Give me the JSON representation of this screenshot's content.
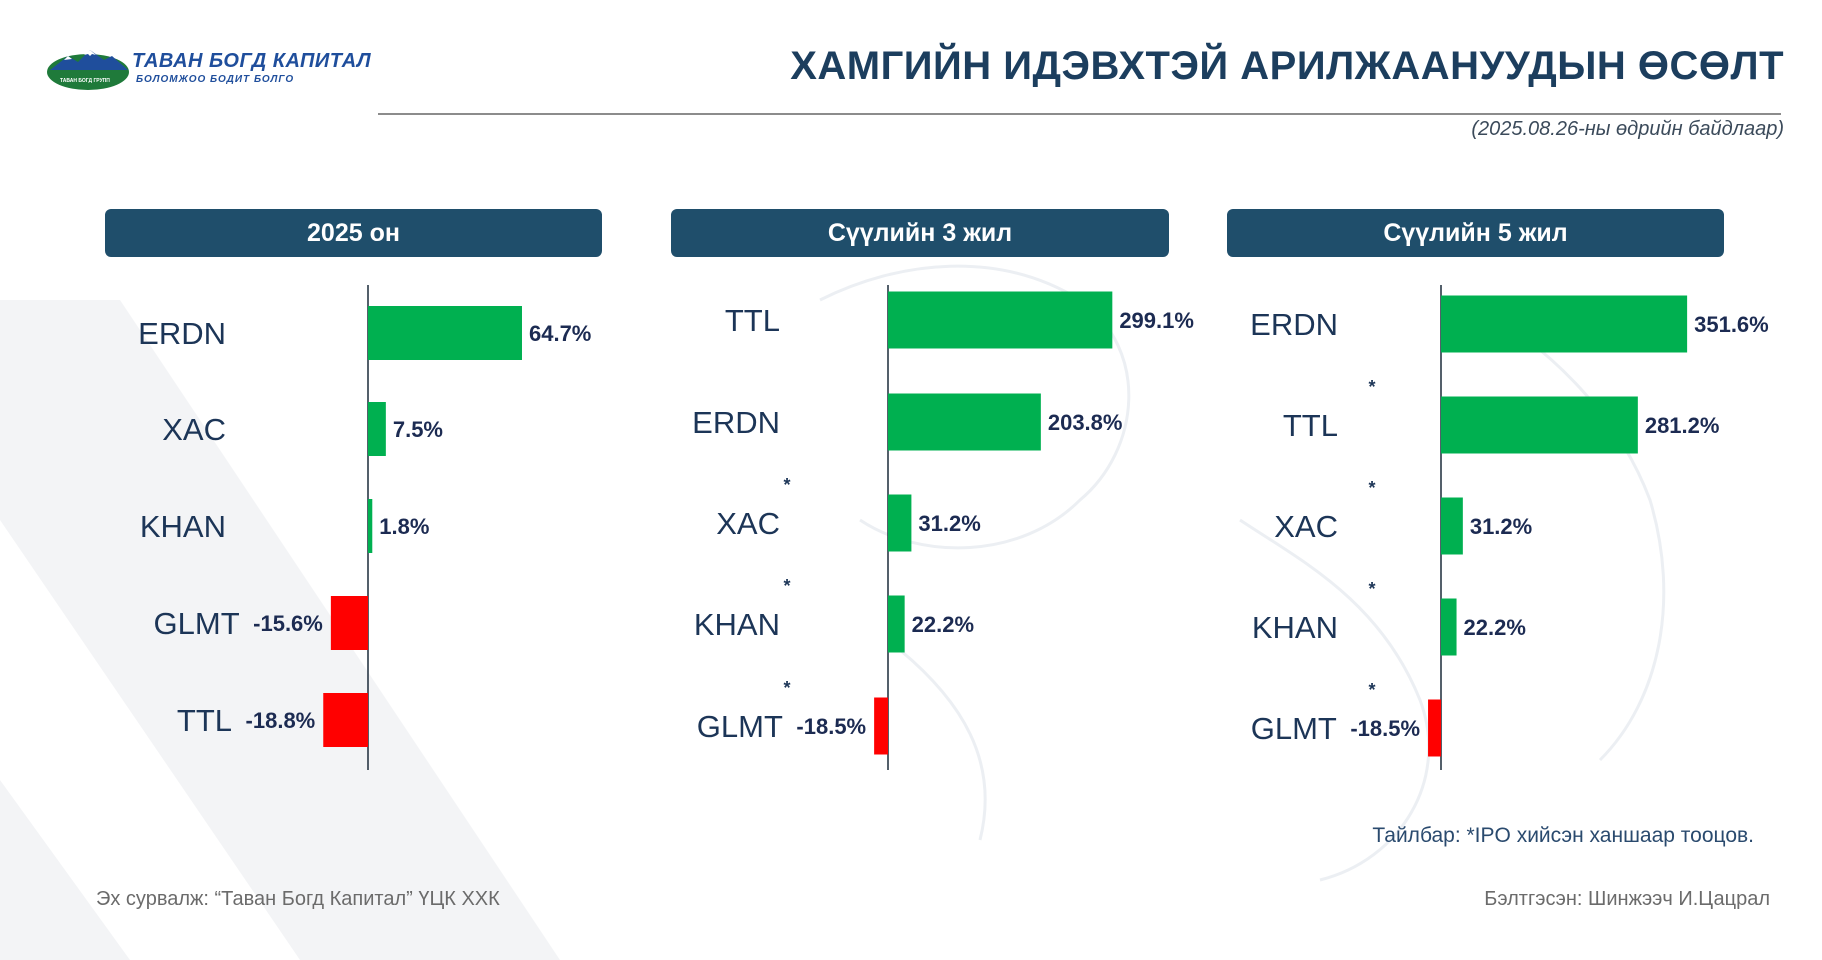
{
  "logo": {
    "name": "ТАВАН БОГД КАПИТАЛ",
    "tagline": "БОЛОМЖОО БОДИТ БОЛГО",
    "emblem_text": "ТАВАН БОГД ГРУПП"
  },
  "title": "ХАМГИЙН ИДЭВХТЭЙ АРИЛЖААНУУДЫН ӨСӨЛТ",
  "subtitle": "(2025.08.26-ны өдрийн байдлаар)",
  "colors": {
    "header_bg": "#1f4e6b",
    "positive": "#00b050",
    "negative": "#ff0000",
    "text_dark": "#1c3557"
  },
  "chart_data": [
    {
      "type": "bar",
      "orientation": "horizontal",
      "title": "2025 он",
      "categories": [
        "ERDN",
        "XAC",
        "KHAN",
        "GLMT",
        "TTL"
      ],
      "values": [
        64.7,
        7.5,
        1.8,
        -15.6,
        -18.8
      ],
      "labels": [
        "64.7%",
        "7.5%",
        "1.8%",
        "-15.6%",
        "-18.8%"
      ],
      "asterisks": [
        false,
        false,
        false,
        false,
        false
      ]
    },
    {
      "type": "bar",
      "orientation": "horizontal",
      "title": "Сүүлийн 3 жил",
      "categories": [
        "TTL",
        "ERDN",
        "XAC",
        "KHAN",
        "GLMT"
      ],
      "values": [
        299.1,
        203.8,
        31.2,
        22.2,
        -18.5
      ],
      "labels": [
        "299.1%",
        "203.8%",
        "31.2%",
        "22.2%",
        "-18.5%"
      ],
      "asterisks": [
        false,
        false,
        true,
        true,
        true
      ]
    },
    {
      "type": "bar",
      "orientation": "horizontal",
      "title": "Сүүлийн 5 жил",
      "categories": [
        "ERDN",
        "TTL",
        "XAC",
        "KHAN",
        "GLMT"
      ],
      "values": [
        351.6,
        281.2,
        31.2,
        22.2,
        -18.5
      ],
      "labels": [
        "351.6%",
        "281.2%",
        "31.2%",
        "22.2%",
        "-18.5%"
      ],
      "asterisks": [
        false,
        true,
        true,
        true,
        true
      ]
    }
  ],
  "note": "Тайлбар: *IPO хийсэн ханшаар тооцов.",
  "source": "Эх сурвалж: “Таван Богд Капитал” ҮЦК ХХК",
  "author": "Бэлтгэсэн: Шинжээч И.Цацрал"
}
